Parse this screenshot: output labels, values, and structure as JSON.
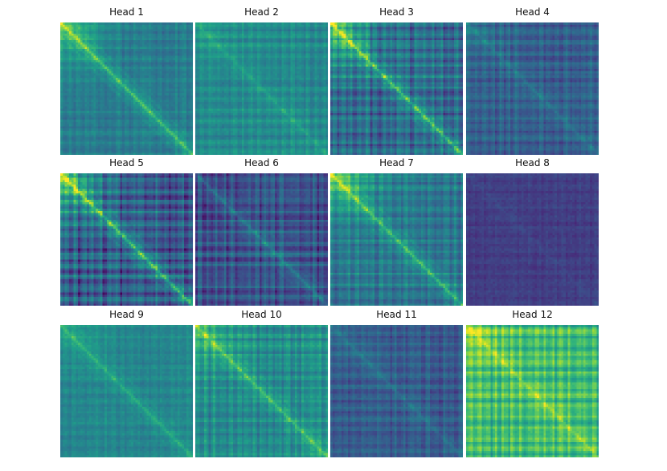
{
  "chart_data": {
    "type": "heatmap",
    "colormap": "viridis",
    "grid": false,
    "panels": [
      {
        "title": "Head 1",
        "base": 0.42,
        "diag": 0.3,
        "topleft": 0.22,
        "stripes": 0.06
      },
      {
        "title": "Head 2",
        "base": 0.48,
        "diag": 0.1,
        "topleft": 0.06,
        "stripes": 0.07
      },
      {
        "title": "Head 3",
        "base": 0.36,
        "diag": 0.38,
        "topleft": 0.28,
        "stripes": 0.14
      },
      {
        "title": "Head 4",
        "base": 0.3,
        "diag": 0.1,
        "topleft": 0.06,
        "stripes": 0.08
      },
      {
        "title": "Head 5",
        "base": 0.3,
        "diag": 0.42,
        "topleft": 0.34,
        "stripes": 0.16
      },
      {
        "title": "Head 6",
        "base": 0.25,
        "diag": 0.18,
        "topleft": -0.08,
        "stripes": 0.12
      },
      {
        "title": "Head 7",
        "base": 0.4,
        "diag": 0.3,
        "topleft": 0.28,
        "stripes": 0.1
      },
      {
        "title": "Head 8",
        "base": 0.18,
        "diag": 0.03,
        "topleft": 0.0,
        "stripes": 0.03
      },
      {
        "title": "Head 9",
        "base": 0.46,
        "diag": 0.16,
        "topleft": 0.08,
        "stripes": 0.05
      },
      {
        "title": "Head 10",
        "base": 0.48,
        "diag": 0.24,
        "topleft": 0.14,
        "stripes": 0.1
      },
      {
        "title": "Head 11",
        "base": 0.28,
        "diag": 0.1,
        "topleft": 0.04,
        "stripes": 0.08
      },
      {
        "title": "Head 12",
        "base": 0.68,
        "diag": 0.16,
        "topleft": 0.12,
        "stripes": 0.12
      }
    ]
  }
}
